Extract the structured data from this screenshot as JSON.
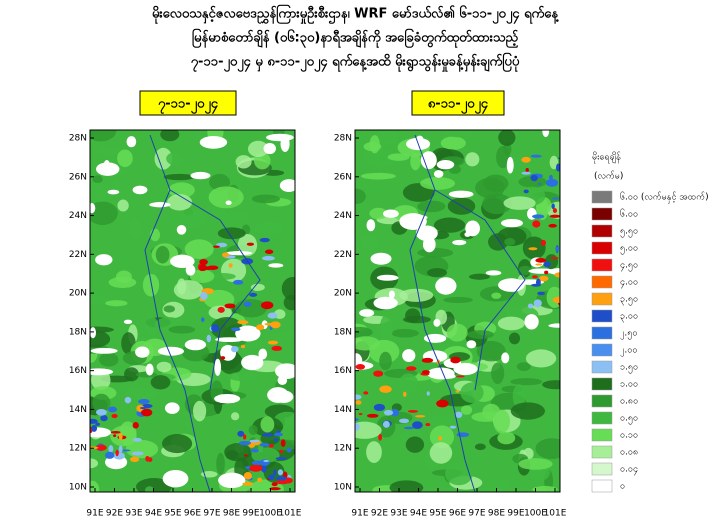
{
  "header": {
    "lines": [
      "မိုးလေဝသနှင့်ဇလဗေဒညွှန်ကြားမှုဦးစီးဌာန၊ WRF မော်ဒယ်လ်၏ ၆-၁၁-၂၀၂၄ ရက်နေ့",
      "မြန်မာစံတော်ချိန် (၀၆:၃၀)နာရီအချိန်ကို အခြေခံတွက်ထုတ်ထားသည့်",
      "၇-၁၁-၂၀၂၄ မှ ၈-၁၁-၂၀၂၄ ရက်နေ့အထိ မိုးရွာသွန်းမှုခန့်မှန်းချက်ပြပုံ"
    ]
  },
  "panels": [
    {
      "label": "၇-၁၁-၂၀၂၄"
    },
    {
      "label": "၈-၁၁-၂၀၂၄"
    }
  ],
  "lat_ticks": [
    "28N",
    "26N",
    "24N",
    "22N",
    "20N",
    "18N",
    "16N",
    "14N",
    "12N",
    "10N"
  ],
  "lon_ticks": [
    "91E",
    "92E",
    "93E",
    "94E",
    "95E",
    "96E",
    "97E",
    "98E",
    "99E",
    "100E",
    "101E"
  ],
  "legend": {
    "title": "မိုးရေချိန်",
    "unit": "(လက်မ)",
    "items": [
      {
        "label": "၆.၀၀ (လက်မနှင့် အထက်)",
        "color": "#7a7a7a"
      },
      {
        "label": "၆.၀၀",
        "color": "#7b0000"
      },
      {
        "label": "၅.၅၀",
        "color": "#b00000"
      },
      {
        "label": "၅.၀၀",
        "color": "#d80000"
      },
      {
        "label": "၄.၅၀",
        "color": "#f01010"
      },
      {
        "label": "၄.၀၀",
        "color": "#ff6a00"
      },
      {
        "label": "၃.၅၀",
        "color": "#ffa010"
      },
      {
        "label": "၃.၀၀",
        "color": "#1f4fc8"
      },
      {
        "label": "၂.၅၀",
        "color": "#2c6fe0"
      },
      {
        "label": "၂.၀၀",
        "color": "#4a8ef0"
      },
      {
        "label": "၁.၅၀",
        "color": "#8cc0f5"
      },
      {
        "label": "၁.၀၀",
        "color": "#1e6e1e"
      },
      {
        "label": "၀.၈၀",
        "color": "#2f9a2f"
      },
      {
        "label": "၀.၅၀",
        "color": "#40b840"
      },
      {
        "label": "၀.၁၀",
        "color": "#66dd55"
      },
      {
        "label": "၀.၀၈",
        "color": "#a6ef98"
      },
      {
        "label": "၀.၀၄",
        "color": "#d4f8cc"
      },
      {
        "label": "၀",
        "color": "#ffffff"
      }
    ]
  }
}
